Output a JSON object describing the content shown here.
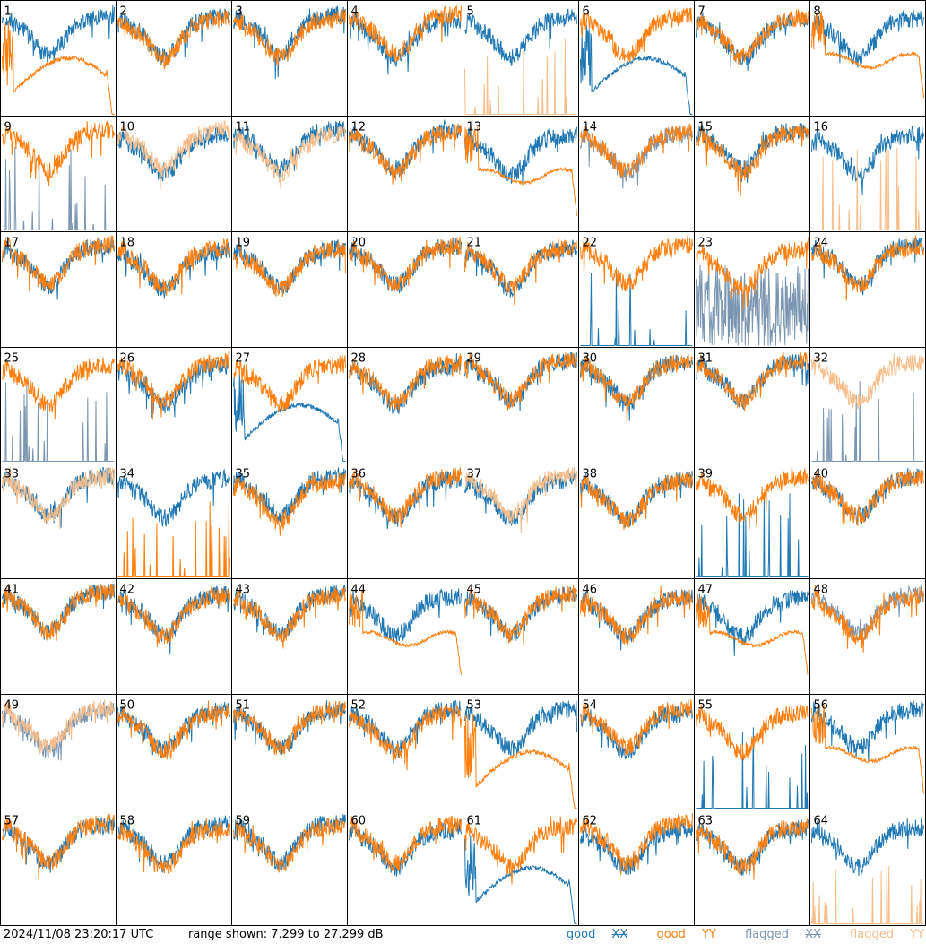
{
  "chart_data": {
    "type": "line",
    "title": "",
    "panel_grid": {
      "rows": 8,
      "cols": 8
    },
    "y_range_db": [
      7.299,
      27.299
    ],
    "colors": {
      "good_xx": "#1f77b4",
      "good_yy": "#ff7f0e",
      "flagged_xx": "#7b96b2",
      "flagged_yy": "#f8bd8a"
    },
    "panels": [
      {
        "label": "1",
        "xx": "good",
        "yy": "good",
        "xx_shape": "normal",
        "yy_shape": "dip"
      },
      {
        "label": "2",
        "xx": "good",
        "yy": "good",
        "xx_shape": "normal",
        "yy_shape": "normal"
      },
      {
        "label": "3",
        "xx": "good",
        "yy": "good",
        "xx_shape": "normal",
        "yy_shape": "normal"
      },
      {
        "label": "4",
        "xx": "good",
        "yy": "good",
        "xx_shape": "normal",
        "yy_shape": "normal"
      },
      {
        "label": "5",
        "xx": "good",
        "yy": "flagged",
        "xx_shape": "normal",
        "yy_shape": "spikes"
      },
      {
        "label": "6",
        "xx": "good",
        "yy": "good",
        "xx_shape": "dip",
        "yy_shape": "normal"
      },
      {
        "label": "7",
        "xx": "good",
        "yy": "good",
        "xx_shape": "normal",
        "yy_shape": "normal"
      },
      {
        "label": "8",
        "xx": "good",
        "yy": "good",
        "xx_shape": "normal",
        "yy_shape": "flat"
      },
      {
        "label": "9",
        "xx": "flagged",
        "yy": "good",
        "xx_shape": "spikes",
        "yy_shape": "normal"
      },
      {
        "label": "10",
        "xx": "good",
        "yy": "flagged",
        "xx_shape": "normal",
        "yy_shape": "normal"
      },
      {
        "label": "11",
        "xx": "good",
        "yy": "flagged",
        "xx_shape": "normal",
        "yy_shape": "normal"
      },
      {
        "label": "12",
        "xx": "good",
        "yy": "good",
        "xx_shape": "normal",
        "yy_shape": "normal"
      },
      {
        "label": "13",
        "xx": "good",
        "yy": "good",
        "xx_shape": "normal",
        "yy_shape": "flat"
      },
      {
        "label": "14",
        "xx": "flagged",
        "yy": "good",
        "xx_shape": "normal",
        "yy_shape": "normal"
      },
      {
        "label": "15",
        "xx": "good",
        "yy": "good",
        "xx_shape": "normal",
        "yy_shape": "normal"
      },
      {
        "label": "16",
        "xx": "good",
        "yy": "flagged",
        "xx_shape": "normal",
        "yy_shape": "spikes"
      },
      {
        "label": "17",
        "xx": "good",
        "yy": "good",
        "xx_shape": "normal",
        "yy_shape": "normal"
      },
      {
        "label": "18",
        "xx": "good",
        "yy": "good",
        "xx_shape": "normal",
        "yy_shape": "normal"
      },
      {
        "label": "19",
        "xx": "good",
        "yy": "good",
        "xx_shape": "normal",
        "yy_shape": "normal"
      },
      {
        "label": "20",
        "xx": "good",
        "yy": "good",
        "xx_shape": "normal",
        "yy_shape": "normal"
      },
      {
        "label": "21",
        "xx": "good",
        "yy": "good",
        "xx_shape": "normal",
        "yy_shape": "normal"
      },
      {
        "label": "22",
        "xx": "good",
        "yy": "good",
        "xx_shape": "spikes",
        "yy_shape": "normal"
      },
      {
        "label": "23",
        "xx": "flagged",
        "yy": "good",
        "xx_shape": "noisy",
        "yy_shape": "normal"
      },
      {
        "label": "24",
        "xx": "good",
        "yy": "good",
        "xx_shape": "normal",
        "yy_shape": "normal"
      },
      {
        "label": "25",
        "xx": "flagged",
        "yy": "good",
        "xx_shape": "spikes",
        "yy_shape": "normal"
      },
      {
        "label": "26",
        "xx": "good",
        "yy": "good",
        "xx_shape": "normal",
        "yy_shape": "normal"
      },
      {
        "label": "27",
        "xx": "good",
        "yy": "good",
        "xx_shape": "dip",
        "yy_shape": "normal"
      },
      {
        "label": "28",
        "xx": "good",
        "yy": "good",
        "xx_shape": "normal",
        "yy_shape": "normal"
      },
      {
        "label": "29",
        "xx": "good",
        "yy": "good",
        "xx_shape": "normal",
        "yy_shape": "normal"
      },
      {
        "label": "30",
        "xx": "good",
        "yy": "good",
        "xx_shape": "normal",
        "yy_shape": "normal"
      },
      {
        "label": "31",
        "xx": "good",
        "yy": "good",
        "xx_shape": "normal",
        "yy_shape": "normal"
      },
      {
        "label": "32",
        "xx": "flagged",
        "yy": "flagged",
        "xx_shape": "spikes",
        "yy_shape": "normal"
      },
      {
        "label": "33",
        "xx": "good",
        "yy": "flagged",
        "xx_shape": "normal",
        "yy_shape": "normal"
      },
      {
        "label": "34",
        "xx": "good",
        "yy": "good",
        "xx_shape": "normal",
        "yy_shape": "spikes"
      },
      {
        "label": "35",
        "xx": "good",
        "yy": "good",
        "xx_shape": "normal",
        "yy_shape": "normal"
      },
      {
        "label": "36",
        "xx": "good",
        "yy": "good",
        "xx_shape": "normal",
        "yy_shape": "normal"
      },
      {
        "label": "37",
        "xx": "good",
        "yy": "flagged",
        "xx_shape": "normal",
        "yy_shape": "normal"
      },
      {
        "label": "38",
        "xx": "good",
        "yy": "good",
        "xx_shape": "normal",
        "yy_shape": "normal"
      },
      {
        "label": "39",
        "xx": "good",
        "yy": "good",
        "xx_shape": "spikes",
        "yy_shape": "normal"
      },
      {
        "label": "40",
        "xx": "good",
        "yy": "good",
        "xx_shape": "normal",
        "yy_shape": "normal"
      },
      {
        "label": "41",
        "xx": "good",
        "yy": "good",
        "xx_shape": "normal",
        "yy_shape": "normal"
      },
      {
        "label": "42",
        "xx": "good",
        "yy": "good",
        "xx_shape": "normal",
        "yy_shape": "normal"
      },
      {
        "label": "43",
        "xx": "good",
        "yy": "good",
        "xx_shape": "normal",
        "yy_shape": "normal"
      },
      {
        "label": "44",
        "xx": "good",
        "yy": "good",
        "xx_shape": "normal",
        "yy_shape": "flat"
      },
      {
        "label": "45",
        "xx": "good",
        "yy": "good",
        "xx_shape": "normal",
        "yy_shape": "normal"
      },
      {
        "label": "46",
        "xx": "good",
        "yy": "good",
        "xx_shape": "normal",
        "yy_shape": "normal"
      },
      {
        "label": "47",
        "xx": "good",
        "yy": "good",
        "xx_shape": "normal",
        "yy_shape": "flat"
      },
      {
        "label": "48",
        "xx": "flagged",
        "yy": "good",
        "xx_shape": "normal",
        "yy_shape": "normal"
      },
      {
        "label": "49",
        "xx": "flagged",
        "yy": "flagged",
        "xx_shape": "normal",
        "yy_shape": "normal"
      },
      {
        "label": "50",
        "xx": "good",
        "yy": "good",
        "xx_shape": "normal",
        "yy_shape": "normal"
      },
      {
        "label": "51",
        "xx": "good",
        "yy": "good",
        "xx_shape": "normal",
        "yy_shape": "normal"
      },
      {
        "label": "52",
        "xx": "good",
        "yy": "good",
        "xx_shape": "normal",
        "yy_shape": "normal"
      },
      {
        "label": "53",
        "xx": "good",
        "yy": "good",
        "xx_shape": "normal",
        "yy_shape": "dip"
      },
      {
        "label": "54",
        "xx": "good",
        "yy": "good",
        "xx_shape": "normal",
        "yy_shape": "normal"
      },
      {
        "label": "55",
        "xx": "good",
        "yy": "good",
        "xx_shape": "spikes",
        "yy_shape": "normal"
      },
      {
        "label": "56",
        "xx": "good",
        "yy": "good",
        "xx_shape": "normal",
        "yy_shape": "flat"
      },
      {
        "label": "57",
        "xx": "good",
        "yy": "good",
        "xx_shape": "normal",
        "yy_shape": "normal"
      },
      {
        "label": "58",
        "xx": "good",
        "yy": "good",
        "xx_shape": "normal",
        "yy_shape": "normal"
      },
      {
        "label": "59",
        "xx": "good",
        "yy": "good",
        "xx_shape": "normal",
        "yy_shape": "normal"
      },
      {
        "label": "60",
        "xx": "good",
        "yy": "good",
        "xx_shape": "normal",
        "yy_shape": "normal"
      },
      {
        "label": "61",
        "xx": "good",
        "yy": "good",
        "xx_shape": "dip",
        "yy_shape": "normal"
      },
      {
        "label": "62",
        "xx": "good",
        "yy": "good",
        "xx_shape": "normal",
        "yy_shape": "normal"
      },
      {
        "label": "63",
        "xx": "good",
        "yy": "good",
        "xx_shape": "normal",
        "yy_shape": "normal"
      },
      {
        "label": "64",
        "xx": "good",
        "yy": "flagged",
        "xx_shape": "normal",
        "yy_shape": "spikes"
      }
    ]
  },
  "footer": {
    "timestamp": "2024/11/08 23:20:17 UTC",
    "range_text": "range shown: 7.299 to 27.299 dB"
  },
  "legend": {
    "good": "good",
    "flagged": "flagged",
    "xx": "XX",
    "yy": "YY"
  }
}
